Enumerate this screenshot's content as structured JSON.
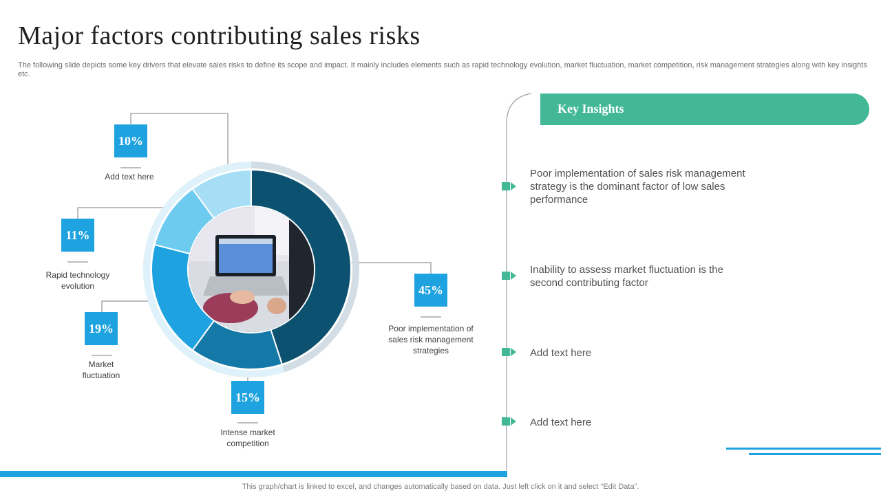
{
  "title": "Major factors contributing sales risks",
  "subtitle": "The following slide depicts some key drivers that elevate sales risks to define its scope and impact. It mainly includes elements such as rapid technology evolution, market fluctuation, market competition, risk management strategies along with key insights etc.",
  "chart_data": {
    "type": "pie",
    "subtype": "donut",
    "title": "",
    "slices": [
      {
        "label": "Poor implementation of sales risk management strategies",
        "value": 45,
        "display": "45%",
        "color": "#0d5170"
      },
      {
        "label": "Intense market competition",
        "value": 15,
        "display": "15%",
        "color": "#1579a8"
      },
      {
        "label": "Market fluctuation",
        "value": 19,
        "display": "19%",
        "color": "#1fa3e0"
      },
      {
        "label": "Rapid technology evolution",
        "value": 11,
        "display": "11%",
        "color": "#6ecbf0"
      },
      {
        "label": "Add text here",
        "value": 10,
        "display": "10%",
        "color": "#a6def5"
      }
    ]
  },
  "insights": {
    "header": "Key Insights",
    "items": [
      "Poor implementation of sales risk management strategy is the dominant factor of low sales performance",
      "Inability to assess market fluctuation is the second contributing factor",
      "Add text here",
      "Add text here"
    ]
  },
  "colors": {
    "accent": "#1fa3e0",
    "green": "#43b896"
  },
  "footer": "This graph/chart is linked to excel,  and changes automatically based on data. Just left click on it and select “Edit Data”."
}
